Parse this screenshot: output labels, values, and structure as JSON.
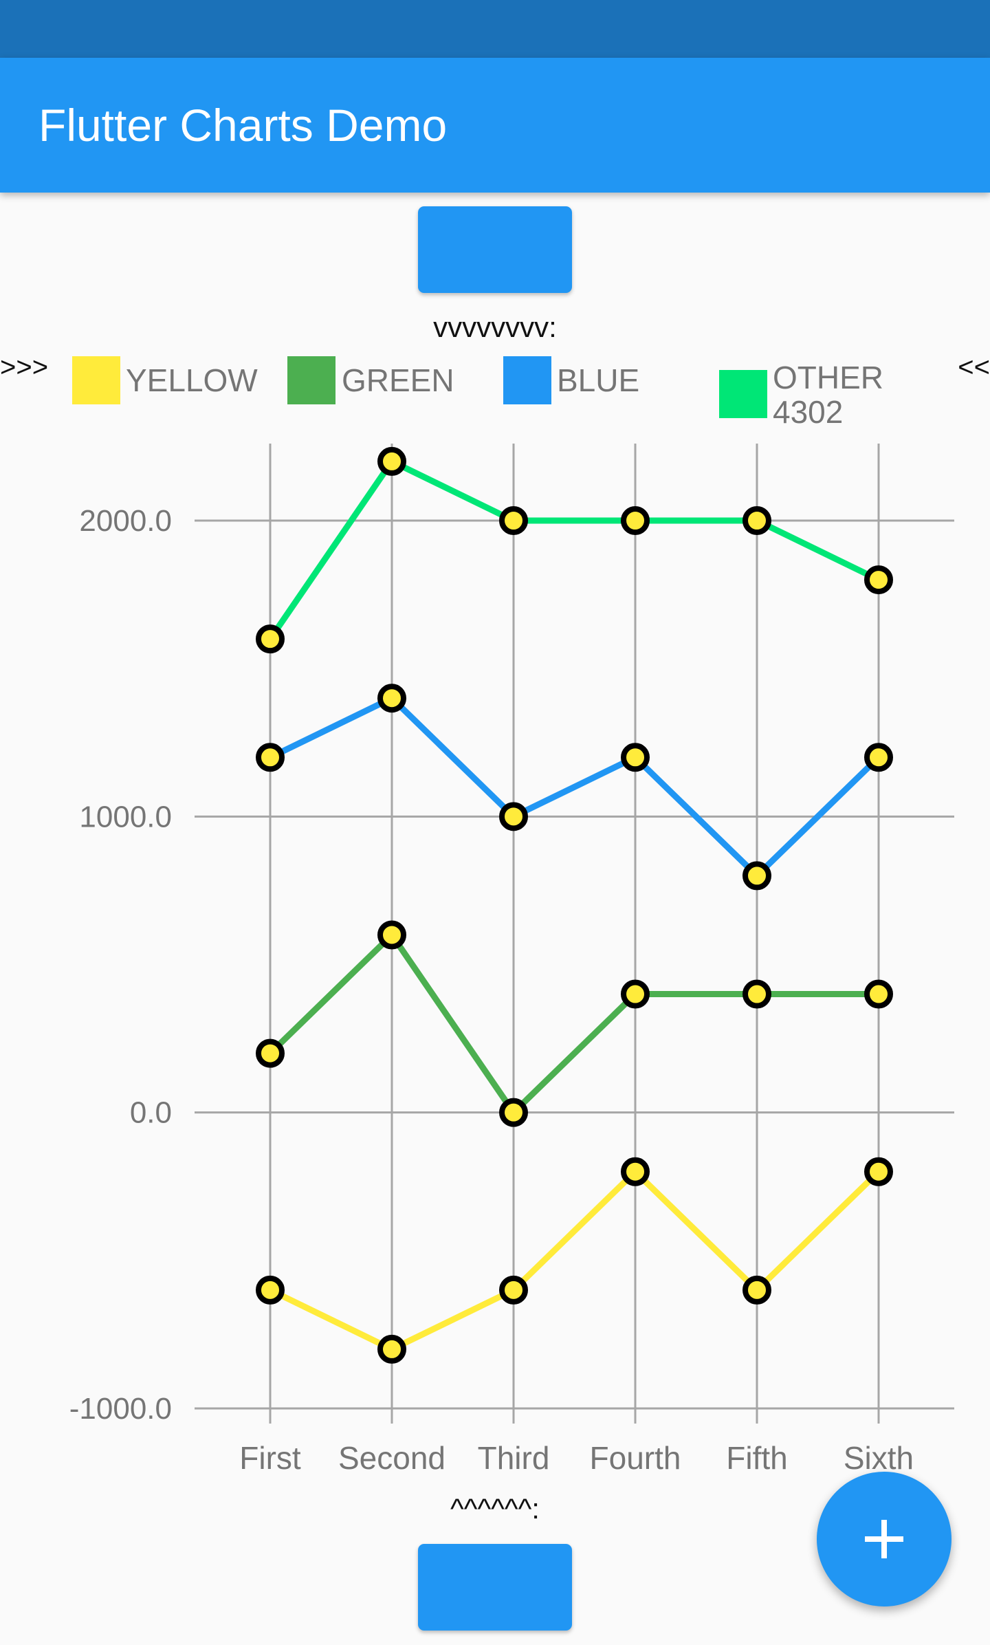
{
  "app": {
    "title": "Flutter Charts Demo"
  },
  "labels": {
    "top": "vvvvvvvv:",
    "bottom": "^^^^^^:",
    "left_marker": ">>>",
    "right_marker": "<<"
  },
  "colors": {
    "status_bar": "#1b71b8",
    "app_bar": "#2196f3",
    "button": "#2196f3"
  },
  "fab": {
    "icon": "plus-icon"
  },
  "chart_data": {
    "type": "line",
    "categories": [
      "First",
      "Second",
      "Third",
      "Fourth",
      "Fifth",
      "Sixth"
    ],
    "y_ticks": [
      "2000.0",
      "1000.0",
      "0.0",
      "-1000.0"
    ],
    "ylim": [
      -1000,
      2000
    ],
    "grid": true,
    "legend_position": "top",
    "series": [
      {
        "name": "YELLOW",
        "color": "#ffeb3b",
        "values": [
          -600,
          -800,
          -600,
          -200,
          -600,
          -200
        ]
      },
      {
        "name": "GREEN",
        "color": "#4caf50",
        "values": [
          200,
          600,
          0,
          400,
          400,
          400
        ]
      },
      {
        "name": "BLUE",
        "color": "#2196f3",
        "values": [
          1200,
          1400,
          1000,
          1200,
          800,
          1200
        ]
      },
      {
        "name": "OTHER\n4302",
        "color": "#00e676",
        "values": [
          1600,
          2200,
          2000,
          2000,
          2000,
          1800
        ]
      }
    ],
    "marker": {
      "fill": "#ffeb3b",
      "stroke": "#000000"
    }
  }
}
